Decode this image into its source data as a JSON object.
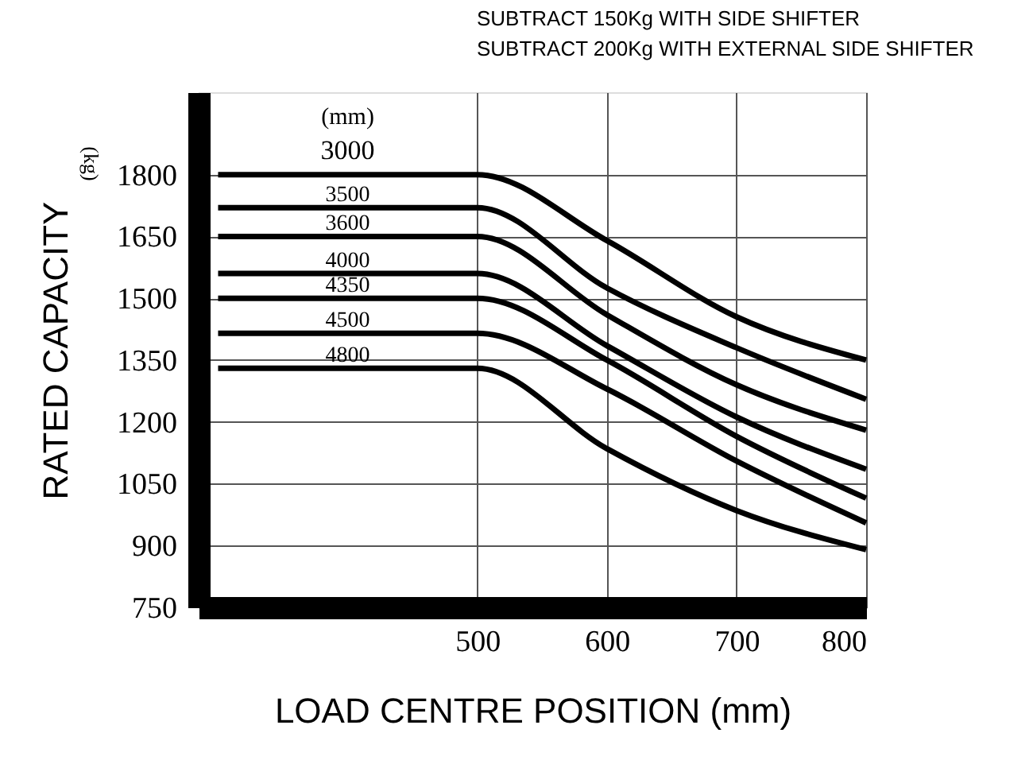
{
  "chart_data": {
    "type": "line",
    "xlabel": "LOAD CENTRE POSITION (mm)",
    "ylabel": "RATED CAPACITY",
    "legend_title": "(mm)",
    "annotations": [
      "SUBTRACT 150Kg WITH SIDE SHIFTER",
      "SUBTRACT 200Kg WITH EXTERNAL SIDE SHIFTER",
      "(kg)"
    ],
    "xlim": [
      285,
      800
    ],
    "xticks": [
      500,
      600,
      700,
      800
    ],
    "ylim": [
      750,
      2000
    ],
    "yticks": [
      750,
      900,
      1050,
      1200,
      1350,
      1500,
      1650,
      1800
    ],
    "grid": true,
    "marker": "none",
    "line_style": "solid",
    "series": [
      {
        "name": "3000",
        "color": "#000000",
        "x": [
          300,
          500,
          600,
          700,
          800
        ],
        "values": [
          1800,
          1800,
          1640,
          1455,
          1350
        ]
      },
      {
        "name": "3500",
        "color": "#000000",
        "x": [
          300,
          500,
          600,
          700,
          800
        ],
        "values": [
          1720,
          1720,
          1525,
          1380,
          1255
        ]
      },
      {
        "name": "3600",
        "color": "#000000",
        "x": [
          300,
          500,
          600,
          700,
          800
        ],
        "values": [
          1650,
          1650,
          1460,
          1290,
          1180
        ]
      },
      {
        "name": "4000",
        "color": "#000000",
        "x": [
          300,
          500,
          600,
          700,
          800
        ],
        "values": [
          1560,
          1560,
          1385,
          1212,
          1085
        ]
      },
      {
        "name": "4350",
        "color": "#000000",
        "x": [
          300,
          500,
          600,
          700,
          800
        ],
        "values": [
          1500,
          1500,
          1350,
          1165,
          1015
        ]
      },
      {
        "name": "4500",
        "color": "#000000",
        "x": [
          300,
          500,
          600,
          700,
          800
        ],
        "values": [
          1415,
          1415,
          1280,
          1105,
          955
        ]
      },
      {
        "name": "4800",
        "color": "#000000",
        "x": [
          300,
          500,
          600,
          700,
          800
        ],
        "values": [
          1330,
          1330,
          1135,
          985,
          890
        ]
      }
    ]
  }
}
